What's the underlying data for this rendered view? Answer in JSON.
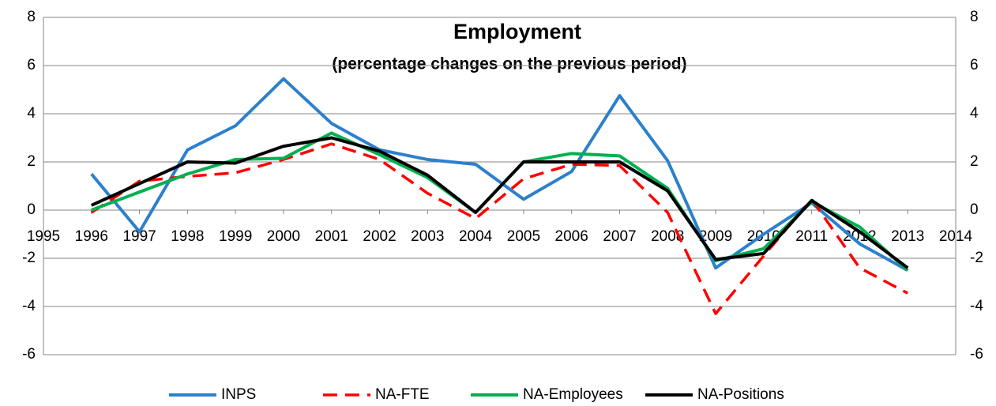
{
  "chart_data": {
    "type": "line",
    "title": "Employment",
    "subtitle": "(percentage changes on the previous period)",
    "x": [
      1996,
      1997,
      1998,
      1999,
      2000,
      2001,
      2002,
      2003,
      2004,
      2005,
      2006,
      2007,
      2008,
      2009,
      2010,
      2011,
      2012,
      2013
    ],
    "series": [
      {
        "name": "INPS",
        "color": "#2c80cc",
        "dash": false,
        "values": [
          1.5,
          -0.9,
          2.5,
          3.5,
          5.45,
          3.6,
          2.5,
          2.1,
          1.9,
          0.45,
          1.6,
          4.75,
          2.05,
          -2.4,
          -1.0,
          0.3,
          -1.4,
          -2.5
        ]
      },
      {
        "name": "NA-FTE",
        "color": "#ff0000",
        "dash": true,
        "values": [
          -0.1,
          1.2,
          1.4,
          1.55,
          2.1,
          2.75,
          2.1,
          0.7,
          -0.35,
          1.3,
          1.9,
          1.85,
          -0.1,
          -4.3,
          -1.9,
          0.45,
          -2.4,
          -3.45
        ]
      },
      {
        "name": "NA-Employees",
        "color": "#00b050",
        "dash": false,
        "values": [
          0.0,
          0.75,
          1.5,
          2.1,
          2.15,
          3.2,
          2.3,
          1.35,
          -0.1,
          2.0,
          2.35,
          2.25,
          0.9,
          -2.1,
          -1.6,
          0.35,
          -0.7,
          -2.5
        ]
      },
      {
        "name": "NA-Positions",
        "color": "#000000",
        "dash": false,
        "values": [
          0.2,
          1.1,
          2.0,
          1.95,
          2.65,
          3.0,
          2.45,
          1.45,
          -0.1,
          2.0,
          2.0,
          2.0,
          0.8,
          -2.05,
          -1.8,
          0.4,
          -0.9,
          -2.4
        ]
      }
    ],
    "xlim": [
      1995,
      2014
    ],
    "xticks": [
      1995,
      1996,
      1997,
      1998,
      1999,
      2000,
      2001,
      2002,
      2003,
      2004,
      2005,
      2006,
      2007,
      2008,
      2009,
      2010,
      2011,
      2012,
      2013,
      2014
    ],
    "ylim": [
      -6,
      8
    ],
    "yticks": [
      -6,
      -4,
      -2,
      0,
      2,
      4,
      6,
      8
    ],
    "y2lim": [
      -6,
      8
    ],
    "y2ticks": [
      -6,
      -4,
      -2,
      0,
      2,
      4,
      6,
      8
    ],
    "grid": true,
    "legend": "bottom"
  }
}
